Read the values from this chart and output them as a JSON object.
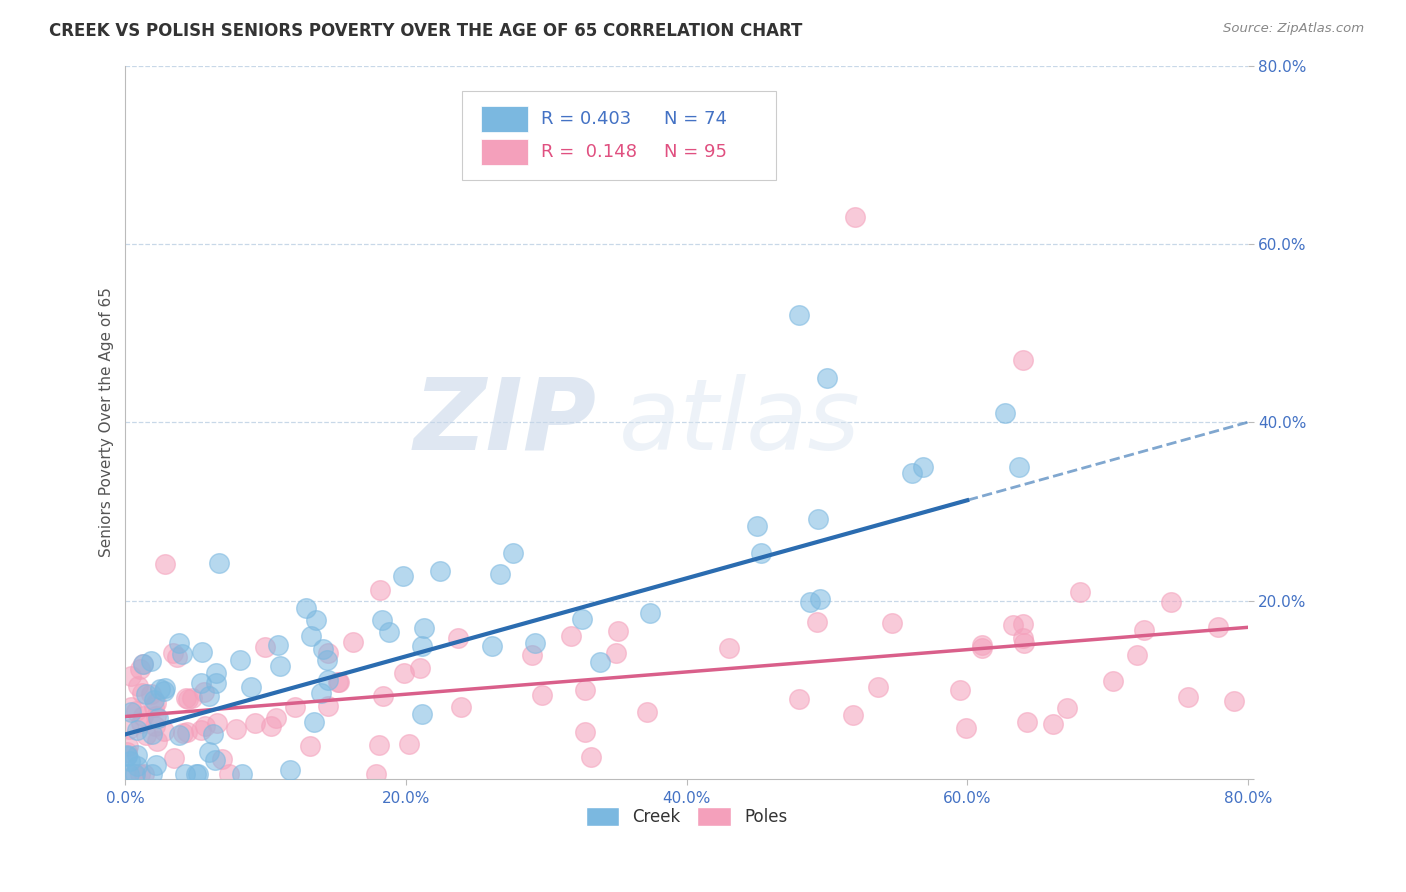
{
  "title": "CREEK VS POLISH SENIORS POVERTY OVER THE AGE OF 65 CORRELATION CHART",
  "source": "Source: ZipAtlas.com",
  "ylabel": "Seniors Poverty Over the Age of 65",
  "xlim": [
    0.0,
    0.8
  ],
  "ylim": [
    0.0,
    0.8
  ],
  "creek_R": 0.403,
  "creek_N": 74,
  "poles_R": 0.148,
  "poles_N": 95,
  "creek_color": "#7bb8e0",
  "poles_color": "#f4a0bb",
  "creek_line_color": "#2b6cb0",
  "poles_line_color": "#d95f8a",
  "background_color": "#ffffff",
  "grid_color": "#c8d8e8",
  "watermark_zip": "ZIP",
  "watermark_atlas": "atlas",
  "tick_color": "#4472c4",
  "title_color": "#333333",
  "source_color": "#888888",
  "ylabel_color": "#555555"
}
